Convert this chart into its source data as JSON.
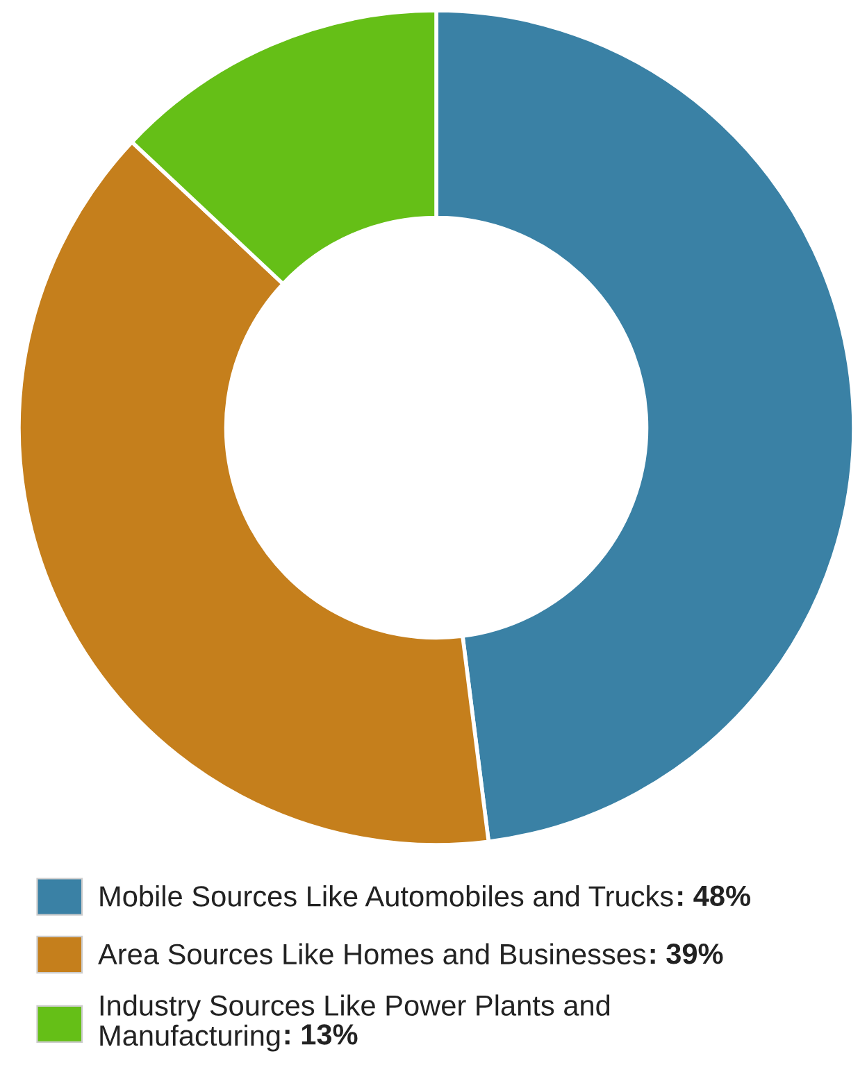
{
  "chart_data": {
    "type": "donut",
    "categories": [
      "Mobile Sources Like Automobiles and Trucks",
      "Area Sources Like Homes and Businesses",
      "Industry Sources Like Power Plants and Manufacturing"
    ],
    "values": [
      48,
      39,
      13
    ],
    "value_labels": [
      ": 48%",
      ": 39%",
      ": 13%"
    ],
    "colors": [
      "#3a81a5",
      "#c57f1c",
      "#65bf17"
    ],
    "legend": "bottom"
  }
}
